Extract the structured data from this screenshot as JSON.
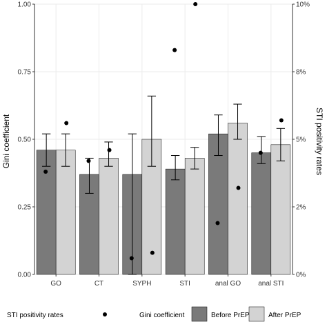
{
  "chart_data": {
    "type": "bar",
    "categories": [
      "GO",
      "CT",
      "SYPH",
      "STI",
      "anal GO",
      "anal STI"
    ],
    "ylabel": "Gini coefficient",
    "ylim": [
      0,
      1.0
    ],
    "y_ticks": [
      "0.00",
      "0.25",
      "0.50",
      "0.75",
      "1.00"
    ],
    "y2label": "STI positivity rates",
    "y2lim": [
      0,
      10
    ],
    "y2_ticks": [
      "0%",
      "2%",
      "5%",
      "8%",
      "10%"
    ],
    "y2_tick_values": [
      0,
      2.5,
      5,
      7.5,
      10
    ],
    "grid": true,
    "series": [
      {
        "name": "Before PrEP",
        "color": "#7a7a7a",
        "values": [
          0.46,
          0.37,
          0.37,
          0.39,
          0.52,
          0.45
        ],
        "err_low": [
          0.4,
          0.3,
          0.0,
          0.35,
          0.44,
          0.41
        ],
        "err_high": [
          0.52,
          0.43,
          0.52,
          0.44,
          0.59,
          0.51
        ]
      },
      {
        "name": "After PrEP",
        "color": "#d3d3d3",
        "values": [
          0.46,
          0.43,
          0.5,
          0.43,
          0.56,
          0.48
        ],
        "err_low": [
          0.4,
          0.4,
          0.4,
          0.39,
          0.5,
          0.42
        ],
        "err_high": [
          0.52,
          0.49,
          0.66,
          0.47,
          0.63,
          0.54
        ]
      }
    ],
    "points": {
      "name": "STI positivity rates",
      "before": [
        3.8,
        4.2,
        0.6,
        8.3,
        1.9,
        4.5
      ],
      "after": [
        5.6,
        4.6,
        0.8,
        10.0,
        3.2,
        5.7
      ]
    },
    "legend": {
      "position": "bottom",
      "points_label": "STI positivity rates",
      "bars_label": "Gini coefficient",
      "before_label": "Before PrEP",
      "after_label": "After PrEP"
    }
  }
}
